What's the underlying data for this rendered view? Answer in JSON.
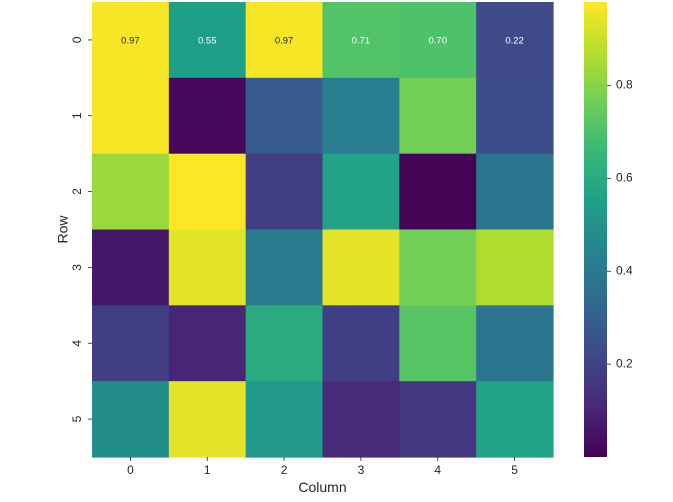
{
  "chart_data": {
    "type": "heatmap",
    "title": "",
    "xlabel": "Column",
    "ylabel": "Row",
    "x_categories": [
      "0",
      "1",
      "2",
      "3",
      "4",
      "5"
    ],
    "y_categories": [
      "0",
      "1",
      "2",
      "3",
      "4",
      "5"
    ],
    "values": [
      [
        0.97,
        0.55,
        0.97,
        0.71,
        0.7,
        0.22
      ],
      [
        0.97,
        0.02,
        0.28,
        0.42,
        0.77,
        0.23
      ],
      [
        0.83,
        0.98,
        0.18,
        0.56,
        0.01,
        0.38
      ],
      [
        0.06,
        0.94,
        0.4,
        0.94,
        0.77,
        0.86
      ],
      [
        0.18,
        0.1,
        0.6,
        0.18,
        0.72,
        0.38
      ],
      [
        0.48,
        0.94,
        0.52,
        0.12,
        0.16,
        0.56
      ]
    ],
    "annotated_row": 0,
    "annotations": [
      "0.97",
      "0.55",
      "0.97",
      "0.71",
      "0.70",
      "0.22"
    ],
    "colormap": "viridis",
    "colorbar": {
      "range": [
        0.0,
        0.98
      ],
      "ticks": [
        0.2,
        0.4,
        0.6,
        0.8
      ],
      "tick_labels": [
        "0.2",
        "0.4",
        "0.6",
        "0.8"
      ]
    }
  }
}
